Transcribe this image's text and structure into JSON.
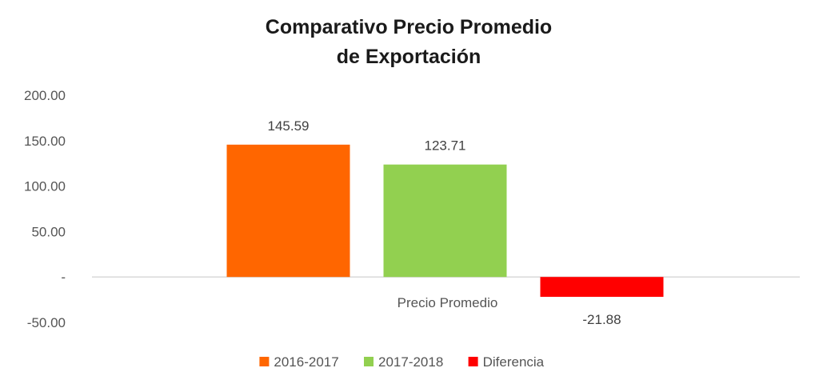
{
  "chart_data": {
    "type": "bar",
    "title_lines": [
      "Comparativo Precio Promedio",
      "de Exportación"
    ],
    "categories": [
      "Precio Promedio"
    ],
    "series": [
      {
        "name": "2016-2017",
        "values": [
          145.59
        ],
        "label": "145.59",
        "color": "#FF6600"
      },
      {
        "name": "2017-2018",
        "values": [
          123.71
        ],
        "label": "123.71",
        "color": "#92D050"
      },
      {
        "name": "Diferencia",
        "values": [
          -21.88
        ],
        "label": "-21.88",
        "color": "#FF0000"
      }
    ],
    "ylim": [
      -50,
      200
    ],
    "yticks": [
      {
        "value": 200,
        "label": "200.00"
      },
      {
        "value": 150,
        "label": "150.00"
      },
      {
        "value": 100,
        "label": "100.00"
      },
      {
        "value": 50,
        "label": "50.00"
      },
      {
        "value": 0,
        "label": "-"
      },
      {
        "value": -50,
        "label": "-50.00"
      }
    ],
    "grid": false,
    "legend_position": "bottom",
    "axis_color": "#D9D9D9"
  }
}
